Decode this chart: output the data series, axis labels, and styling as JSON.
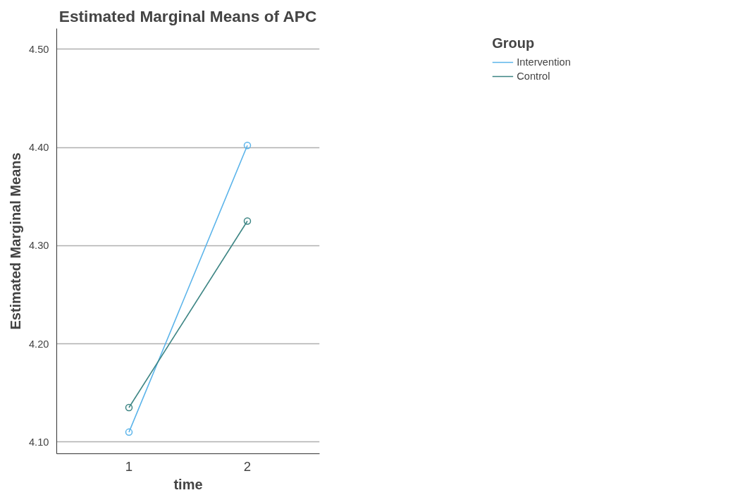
{
  "chart_data": {
    "type": "line",
    "title": "Estimated Marginal Means of APC",
    "xlabel": "time",
    "ylabel": "Estimated Marginal Means",
    "legend_title": "Group",
    "categories": [
      "1",
      "2"
    ],
    "series": [
      {
        "name": "Intervention",
        "color": "#5bb4ea",
        "values": [
          4.11,
          4.402
        ]
      },
      {
        "name": "Control",
        "color": "#3d8584",
        "values": [
          4.135,
          4.325
        ]
      }
    ],
    "ylim": [
      4.088,
      4.521
    ],
    "yticks": [
      {
        "value": 4.1,
        "label": "4.10"
      },
      {
        "value": 4.2,
        "label": "4.20"
      },
      {
        "value": 4.3,
        "label": "4.30"
      },
      {
        "value": 4.4,
        "label": "4.40"
      },
      {
        "value": 4.5,
        "label": "4.50"
      }
    ],
    "grid": "y",
    "legend": "top right",
    "marker": "circle",
    "line_style": "solid"
  }
}
